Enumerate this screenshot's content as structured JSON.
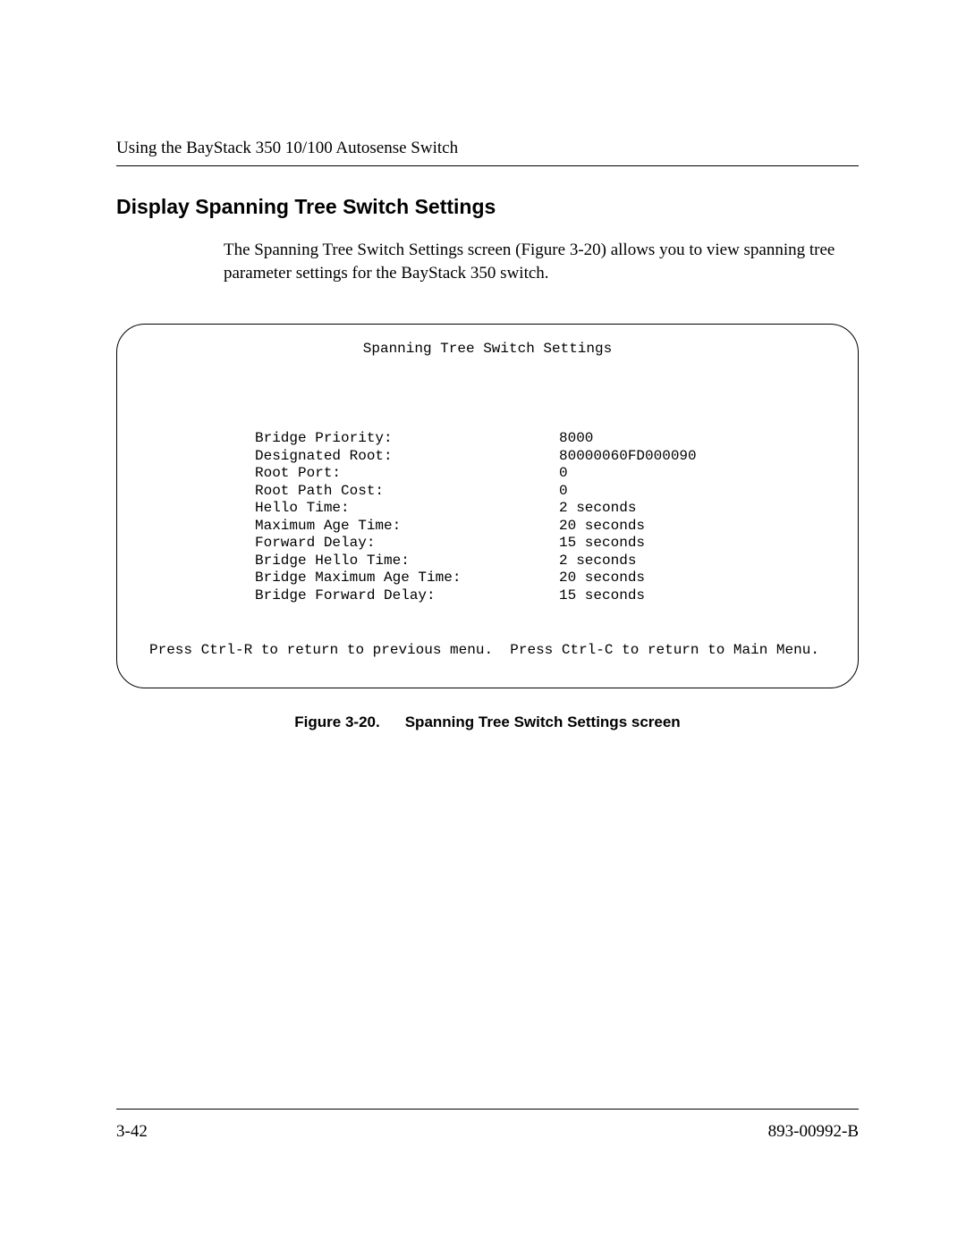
{
  "header": {
    "running": "Using the BayStack 350 10/100 Autosense Switch"
  },
  "section": {
    "title": "Display Spanning Tree Switch Settings",
    "paragraph": "The Spanning Tree Switch Settings screen (Figure 3-20) allows you to view spanning tree parameter settings for the BayStack 350 switch."
  },
  "terminal": {
    "title": "Spanning Tree Switch Settings",
    "rows": [
      {
        "label": "Bridge Priority:",
        "value": "8000"
      },
      {
        "label": "Designated Root:",
        "value": "80000060FD000090"
      },
      {
        "label": "Root Port:",
        "value": "0"
      },
      {
        "label": "Root Path Cost:",
        "value": "0"
      },
      {
        "label": "Hello Time:",
        "value": "2 seconds"
      },
      {
        "label": "Maximum Age Time:",
        "value": "20 seconds"
      },
      {
        "label": "Forward Delay:",
        "value": "15 seconds"
      },
      {
        "label": "Bridge Hello Time:",
        "value": "2 seconds"
      },
      {
        "label": "Bridge Maximum Age Time:",
        "value": "20 seconds"
      },
      {
        "label": "Bridge Forward Delay:",
        "value": "15 seconds"
      }
    ],
    "footer": "Press Ctrl-R to return to previous menu.  Press Ctrl-C to return to Main Menu."
  },
  "figure": {
    "number": "Figure 3-20.",
    "caption": "Spanning Tree Switch Settings screen"
  },
  "footer": {
    "page": "3-42",
    "docnum": "893-00992-B"
  }
}
